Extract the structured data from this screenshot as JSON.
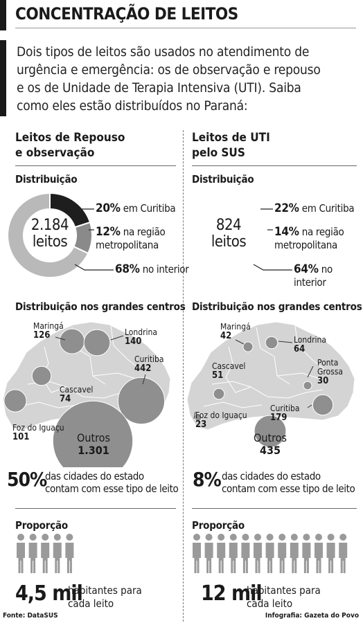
{
  "header": {
    "title": "CONCENTRAÇÃO DE LEITOS",
    "intro_lines": [
      "Dois tipos de leitos são usados no atendimento de",
      "urgência e emergência: os de observação e repouso",
      "e os de Unidade de Terapia Intensiva (UTI). Saiba",
      "como eles estão distribuídos no Paraná:"
    ]
  },
  "left": {
    "title_lines": [
      "Leitos de Repouso",
      "e observação"
    ],
    "dist_label": "Distribuição",
    "center_lines": [
      "2.184",
      "leitos"
    ],
    "legend": [
      {
        "pct": "20%",
        "text_lines": [
          "em Curitiba"
        ]
      },
      {
        "pct": "12%",
        "text_lines": [
          "na região",
          "metropolitana"
        ]
      },
      {
        "pct": "68%",
        "text_lines": [
          "no interior"
        ]
      }
    ],
    "centers_label": "Distribuição nos grandes centros",
    "cities": [
      {
        "name": "Maringá",
        "value": "126"
      },
      {
        "name": "Londrina",
        "value": "140"
      },
      {
        "name": "Curitiba",
        "value": "442"
      },
      {
        "name": "Cascavel",
        "value": "74"
      },
      {
        "name": "Foz do Iguaçu",
        "value": "101"
      },
      {
        "name": "Outros",
        "value": "1.301"
      }
    ],
    "pct_big": "50%",
    "pct_lines": [
      "das cidades do estado",
      "contam com esse tipo de leito"
    ],
    "prop_label": "Proporção",
    "ratio_big": "4,5 mil",
    "ratio_lines": [
      "habitantes para",
      "cada leito"
    ]
  },
  "right": {
    "title_lines": [
      "Leitos de UTI",
      "pelo SUS"
    ],
    "dist_label": "Distribuição",
    "center_lines": [
      "824",
      "leitos"
    ],
    "legend": [
      {
        "pct": "22%",
        "text_lines": [
          "em Curitiba"
        ]
      },
      {
        "pct": "14%",
        "text_lines": [
          "na região",
          "metropolitana"
        ]
      },
      {
        "pct": "64%",
        "text_lines": [
          "no interior"
        ]
      }
    ],
    "centers_label": "Distribuição nos grandes centros",
    "cities": [
      {
        "name": "Maringá",
        "value": "42"
      },
      {
        "name": "Londrina",
        "value": "64"
      },
      {
        "name": "Ponta Grossa",
        "name_lines": [
          "Ponta",
          "Grossa"
        ],
        "value": "30"
      },
      {
        "name": "Cascavel",
        "value": "51"
      },
      {
        "name": "Curitiba",
        "value": "179"
      },
      {
        "name": "Foz do Iguaçu",
        "value": "23"
      },
      {
        "name": "Outros",
        "value": "435"
      }
    ],
    "pct_big": "8%",
    "pct_lines": [
      "das cidades do estado",
      "contam com esse tipo de leito"
    ],
    "prop_label": "Proporção",
    "ratio_big": "12 mil",
    "ratio_lines": [
      "habitantes para",
      "cada leito"
    ]
  },
  "footer": {
    "source": "Fonte: DataSUS",
    "credit": "Infografia: Gazeta do Povo"
  },
  "colors": {
    "dark": "#1e1e1e",
    "mid": "#8a8a8a",
    "light": "#b9b9b9",
    "map": "#d4d4d4",
    "bubble": "#8f8f8f"
  },
  "chart_data": [
    {
      "type": "pie",
      "donut": true,
      "title": "Leitos de Repouso e observação",
      "total": 2184,
      "categories": [
        "em Curitiba",
        "na região metropolitana",
        "no interior"
      ],
      "values": [
        20,
        12,
        68
      ],
      "unit": "%"
    },
    {
      "type": "pie",
      "donut": true,
      "title": "Leitos de UTI pelo SUS",
      "total": 824,
      "categories": [
        "em Curitiba",
        "na região metropolitana",
        "no interior"
      ],
      "values": [
        22,
        14,
        64
      ],
      "unit": "%"
    },
    {
      "type": "scatter",
      "subtype": "bubble-map",
      "title": "Leitos de Repouso e observação",
      "categories": [
        "Maringá",
        "Londrina",
        "Curitiba",
        "Cascavel",
        "Foz do Iguaçu",
        "Outros"
      ],
      "values": [
        126,
        140,
        442,
        74,
        101,
        1301
      ]
    },
    {
      "type": "scatter",
      "subtype": "bubble-map",
      "title": "Leitos de UTI pelo SUS",
      "categories": [
        "Maringá",
        "Londrina",
        "Ponta Grossa",
        "Cascavel",
        "Curitiba",
        "Foz do Iguaçu",
        "Outros"
      ],
      "values": [
        42,
        64,
        30,
        51,
        179,
        23,
        435
      ]
    }
  ]
}
